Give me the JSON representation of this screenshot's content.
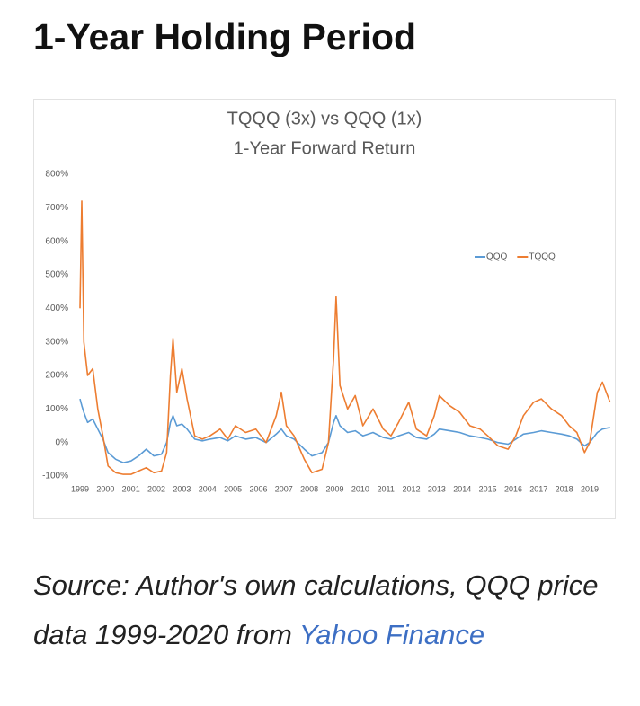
{
  "heading": "1-Year Holding Period",
  "chart_data": {
    "type": "line",
    "title": "TQQQ (3x) vs QQQ (1x)",
    "subtitle": "1-Year Forward Return",
    "x": [
      1999.0,
      1999.07,
      1999.15,
      1999.3,
      1999.5,
      1999.7,
      1999.9,
      2000.1,
      2000.4,
      2000.7,
      2001.0,
      2001.3,
      2001.6,
      2001.9,
      2002.2,
      2002.4,
      2002.55,
      2002.65,
      2002.8,
      2003.0,
      2003.2,
      2003.5,
      2003.8,
      2004.1,
      2004.5,
      2004.8,
      2005.1,
      2005.5,
      2005.9,
      2006.3,
      2006.7,
      2006.9,
      2007.1,
      2007.4,
      2007.8,
      2008.1,
      2008.5,
      2008.75,
      2008.95,
      2009.05,
      2009.2,
      2009.5,
      2009.8,
      2010.1,
      2010.5,
      2010.9,
      2011.2,
      2011.5,
      2011.9,
      2012.2,
      2012.6,
      2012.9,
      2013.1,
      2013.5,
      2013.9,
      2014.3,
      2014.7,
      2015.0,
      2015.4,
      2015.8,
      2016.1,
      2016.4,
      2016.8,
      2017.1,
      2017.5,
      2017.9,
      2018.2,
      2018.5,
      2018.8,
      2019.0,
      2019.3,
      2019.5,
      2019.8
    ],
    "series": [
      {
        "name": "QQQ",
        "color": "#5b9bd5",
        "values": [
          130,
          110,
          90,
          60,
          70,
          40,
          10,
          -30,
          -50,
          -60,
          -55,
          -40,
          -20,
          -40,
          -35,
          0,
          60,
          80,
          50,
          55,
          40,
          10,
          5,
          10,
          15,
          5,
          20,
          10,
          15,
          0,
          25,
          40,
          20,
          10,
          -20,
          -40,
          -30,
          0,
          60,
          80,
          50,
          30,
          35,
          20,
          30,
          15,
          10,
          20,
          30,
          15,
          10,
          25,
          40,
          35,
          30,
          20,
          15,
          10,
          0,
          -5,
          10,
          25,
          30,
          35,
          30,
          25,
          20,
          10,
          -10,
          0,
          30,
          40,
          45
        ]
      },
      {
        "name": "TQQQ",
        "color": "#ed7d31",
        "values": [
          400,
          720,
          300,
          200,
          220,
          100,
          20,
          -70,
          -90,
          -95,
          -95,
          -85,
          -75,
          -90,
          -85,
          -30,
          200,
          310,
          150,
          220,
          130,
          20,
          10,
          20,
          40,
          10,
          50,
          30,
          40,
          0,
          80,
          150,
          50,
          20,
          -50,
          -90,
          -80,
          0,
          250,
          435,
          170,
          100,
          140,
          50,
          100,
          40,
          20,
          60,
          120,
          40,
          20,
          80,
          140,
          110,
          90,
          50,
          40,
          20,
          -10,
          -20,
          20,
          80,
          120,
          130,
          100,
          80,
          50,
          30,
          -30,
          0,
          150,
          180,
          120
        ]
      }
    ],
    "xlim": [
      1999,
      2019.8
    ],
    "xticks": [
      1999,
      2000,
      2001,
      2002,
      2003,
      2004,
      2005,
      2006,
      2007,
      2008,
      2009,
      2010,
      2011,
      2012,
      2013,
      2014,
      2015,
      2016,
      2017,
      2018,
      2019
    ],
    "ylim": [
      -100,
      800
    ],
    "yticks": [
      {
        "value": -100,
        "label": "-100%"
      },
      {
        "value": 0,
        "label": "0%"
      },
      {
        "value": 100,
        "label": "100%"
      },
      {
        "value": 200,
        "label": "200%"
      },
      {
        "value": 300,
        "label": "300%"
      },
      {
        "value": 400,
        "label": "400%"
      },
      {
        "value": 500,
        "label": "500%"
      },
      {
        "value": 600,
        "label": "600%"
      },
      {
        "value": 700,
        "label": "700%"
      },
      {
        "value": 800,
        "label": "800%"
      }
    ],
    "legend": "upper right",
    "grid": false
  },
  "caption": {
    "text": "Source: Author's own calculations, QQQ price data 1999-2020 from",
    "link": "Yahoo Finance"
  }
}
